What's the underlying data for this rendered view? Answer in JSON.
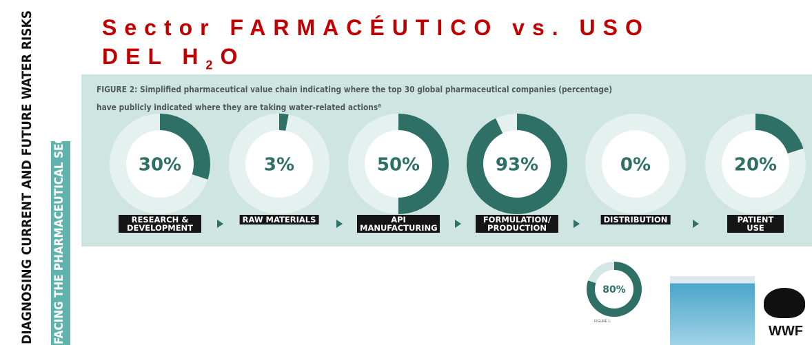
{
  "slide": {
    "title_line1": "Sector FARMACÉUTICO vs. USO",
    "title_line2": "DEL H",
    "title_sub": "2",
    "title_end": "O",
    "side_text1": "DIAGNOSING CURRENT AND FUTURE WATER RISKS",
    "side_text2": "FACING THE PHARMACEUTICAL SECTOR",
    "logo": "WWF"
  },
  "chart_data": [
    {
      "type": "donut",
      "title": "FIGURE 2: Simplified pharmaceutical value chain indicating where the top 30 global pharmaceutical companies (percentage)",
      "subtitle": "have publicly indicated where they are taking water-related actions⁸",
      "categories": [
        "RESEARCH & DEVELOPMENT",
        "RAW MATERIALS",
        "API MANUFACTURING",
        "FORMULATION/ PRODUCTION",
        "DISTRIBUTION",
        "PATIENT USE"
      ],
      "values": [
        30,
        3,
        50,
        93,
        0,
        20
      ],
      "value_labels": [
        "30%",
        "3%",
        "50%",
        "93%",
        "0%",
        "20%"
      ],
      "color": "#2e6f66",
      "track_color": "#e4f1ef"
    },
    {
      "type": "donut",
      "title": "FIGURE 1:",
      "values": [
        80
      ],
      "value_labels": [
        "80%"
      ],
      "color": "#2e6f66",
      "track_color": "#d3e8e5"
    }
  ]
}
